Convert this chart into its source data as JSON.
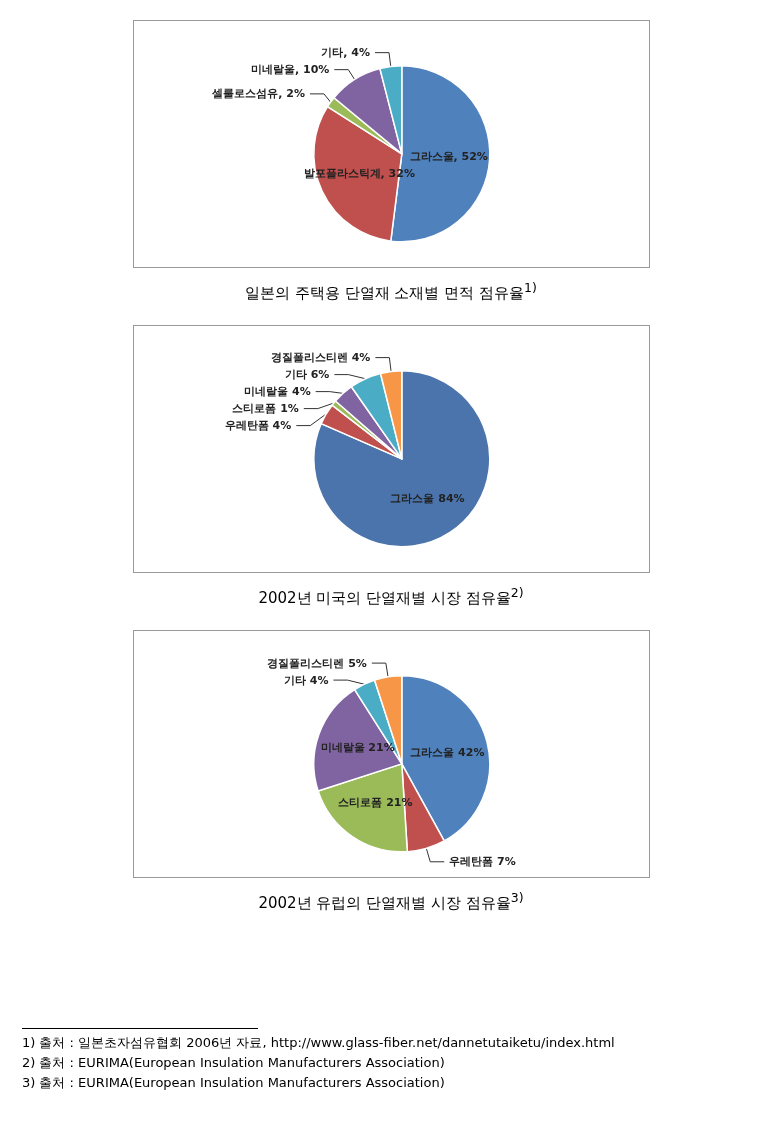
{
  "chart_data": [
    {
      "type": "pie",
      "title": "일본의 주택용 단열재 소재별 면적 점유율$^{1)}$",
      "categories": [
        "그라스울",
        "발포플라스틱계",
        "셀룰로스섬유",
        "미네랄울",
        "기타"
      ],
      "values": [
        52,
        32,
        2,
        10,
        4
      ],
      "value_labels": [
        "52%",
        "32%",
        "2%",
        "10%",
        "4%"
      ],
      "colors": [
        "#4f81bd",
        "#c0504d",
        "#9bbb59",
        "#8064a2",
        "#4bacc6"
      ],
      "annotations": [
        "1) 출처 : 일본초자섬유협회 2006년 자료, http://www.glass-fiber.net/dannetutaiketu/index.html"
      ]
    },
    {
      "type": "pie",
      "title": "2002년 미국의 단열재별 시장 점유율$^{2)}$",
      "categories": [
        "그라스울",
        "우레탄폼",
        "스티로폼",
        "미네랄울",
        "기타",
        "경질폴리스티렌"
      ],
      "values": [
        84,
        4,
        1,
        4,
        6,
        4
      ],
      "value_labels": [
        "84%",
        "4%",
        "1%",
        "4%",
        "6%",
        "4%"
      ],
      "colors": [
        "#4a74ab",
        "#c0504d",
        "#9bbb59",
        "#8064a2",
        "#4bacc6",
        "#f79646"
      ],
      "annotations": [
        "2) 출처 : EURIMA(European Insulation Manufacturers Association)"
      ]
    },
    {
      "type": "pie",
      "title": "2002년 유럽의 단열재별 시장 점유율$^{3)}$",
      "categories": [
        "그라스울",
        "우레탄폼",
        "스티로폼",
        "미네랄울",
        "기타",
        "경질폴리스티렌"
      ],
      "values": [
        42,
        7,
        21,
        21,
        4,
        5
      ],
      "value_labels": [
        "42%",
        "7%",
        "21%",
        "21%",
        "4%",
        "5%"
      ],
      "colors": [
        "#4f81bd",
        "#c0504d",
        "#9bbb59",
        "#8064a2",
        "#4bacc6",
        "#f79646"
      ],
      "annotations": [
        "3) 출처 : EURIMA(European Insulation Manufacturers Association)"
      ]
    }
  ]
}
